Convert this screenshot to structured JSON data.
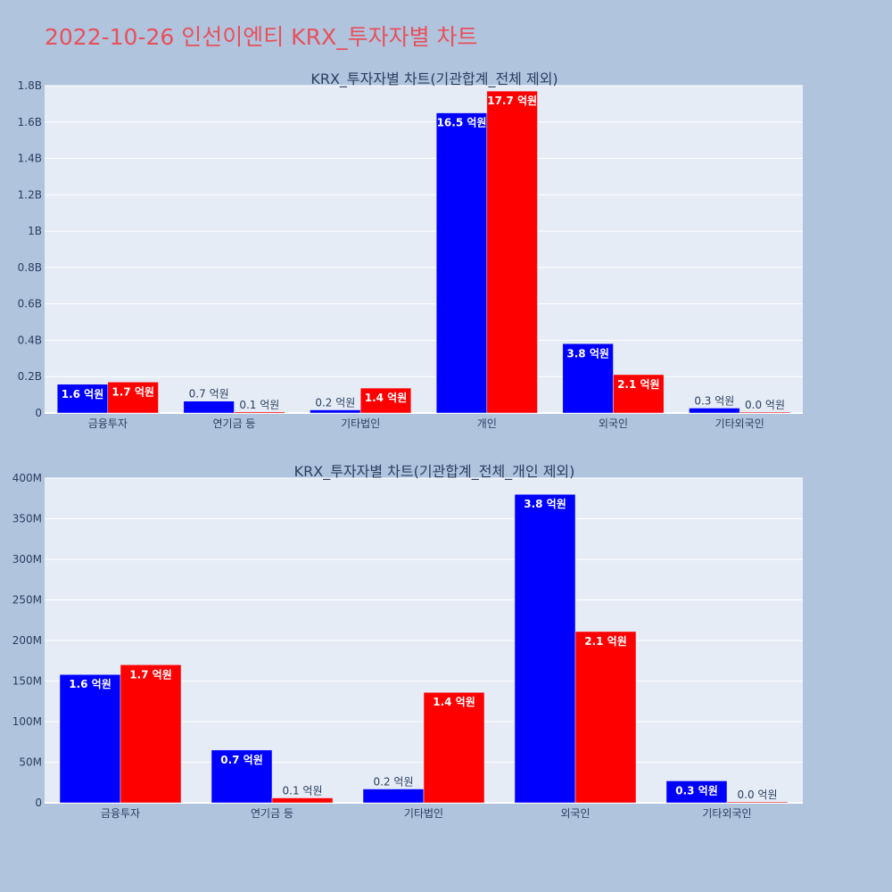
{
  "page_title": "2022-10-26 인선이엔티 KRX_투자자별 차트",
  "colors": {
    "page_bg": "#b0c4de",
    "plot_bg": "#e5ecf6",
    "grid": "#ffffff",
    "series_1": "#0000ff",
    "series_2": "#ff0000",
    "title": "#e8505b",
    "text": "#2a3f5f"
  },
  "chart_data": [
    {
      "type": "bar",
      "title": "KRX_투자자별 차트(기관합계_전체 제외)",
      "xlabel": "",
      "ylabel": "",
      "categories": [
        "금융투자",
        "연기금 등",
        "기타법인",
        "개인",
        "외국인",
        "기타외국인"
      ],
      "ylim": [
        0,
        1.8
      ],
      "yticks": [
        0,
        0.2,
        0.4,
        0.6,
        0.8,
        1.0,
        1.2,
        1.4,
        1.6,
        1.8
      ],
      "yticklabels": [
        "0",
        "0.2B",
        "0.4B",
        "0.6B",
        "0.8B",
        "1B",
        "1.2B",
        "1.4B",
        "1.6B",
        "1.8B"
      ],
      "grid": true,
      "legend": "none",
      "series": [
        {
          "color": "#0000ff",
          "values": [
            0.158,
            0.065,
            0.017,
            1.65,
            0.381,
            0.027
          ],
          "labels": [
            "1.6 억원",
            "0.7 억원",
            "0.2 억원",
            "16.5 억원",
            "3.8 억원",
            "0.3 억원"
          ]
        },
        {
          "color": "#ff0000",
          "values": [
            0.17,
            0.006,
            0.137,
            1.77,
            0.211,
            0.001
          ],
          "labels": [
            "1.7 억원",
            "0.1 억원",
            "1.4 억원",
            "17.7 억원",
            "2.1 억원",
            "0.0 억원"
          ]
        }
      ]
    },
    {
      "type": "bar",
      "title": "KRX_투자자별 차트(기관합계_전체_개인 제외)",
      "xlabel": "",
      "ylabel": "",
      "categories": [
        "금융투자",
        "연기금 등",
        "기타법인",
        "외국인",
        "기타외국인"
      ],
      "ylim": [
        0,
        400
      ],
      "yticks": [
        0,
        50,
        100,
        150,
        200,
        250,
        300,
        350,
        400
      ],
      "yticklabels": [
        "0",
        "50M",
        "100M",
        "150M",
        "200M",
        "250M",
        "300M",
        "350M",
        "400M"
      ],
      "grid": true,
      "legend": "none",
      "series": [
        {
          "color": "#0000ff",
          "values": [
            158,
            65,
            17,
            380,
            27
          ],
          "labels": [
            "1.6 억원",
            "0.7 억원",
            "0.2 억원",
            "3.8 억원",
            "0.3 억원"
          ]
        },
        {
          "color": "#ff0000",
          "values": [
            170,
            6,
            136,
            211,
            1
          ],
          "labels": [
            "1.7 억원",
            "0.1 억원",
            "1.4 억원",
            "2.1 억원",
            "0.0 억원"
          ]
        }
      ]
    }
  ]
}
